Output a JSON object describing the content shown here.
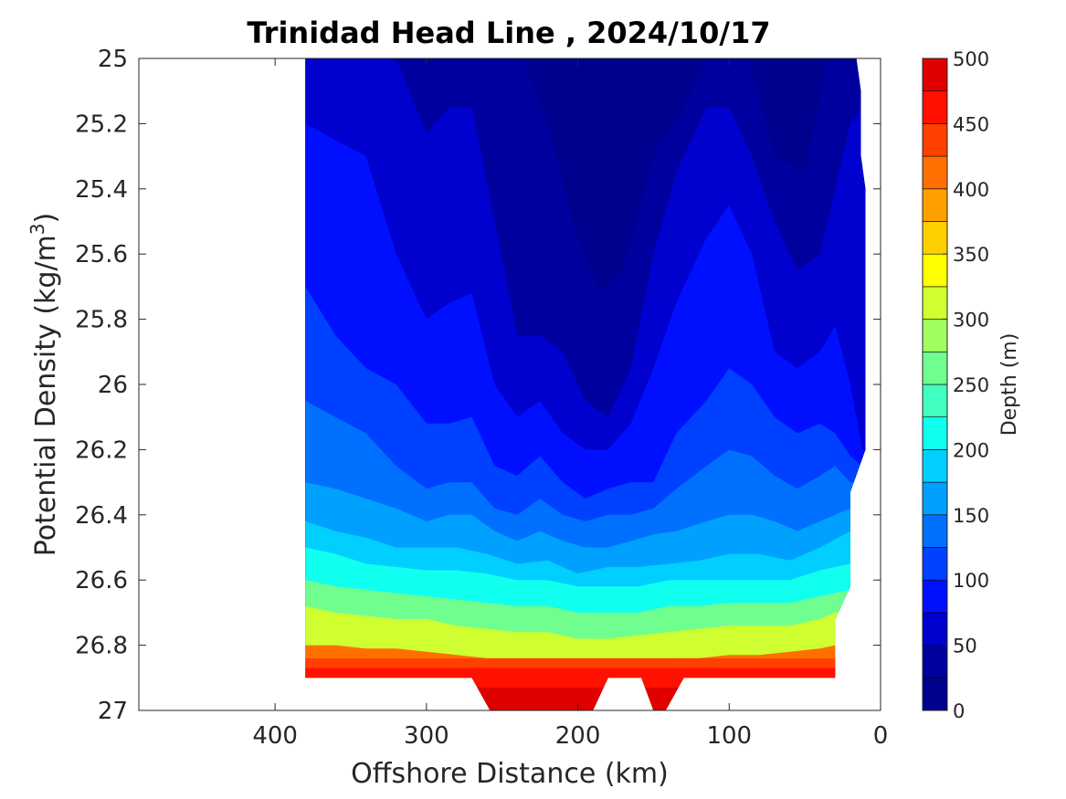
{
  "chart_data": {
    "type": "contourf",
    "title": "Trinidad Head Line , 2024/10/17",
    "xlabel": "Offshore Distance (km)",
    "ylabel_main": "Potential Density (kg/m",
    "ylabel_sup": "3",
    "ylabel_close": ")",
    "xlim": [
      490,
      0
    ],
    "ylim": [
      27,
      25
    ],
    "x_ticks": [
      400,
      300,
      200,
      100,
      0
    ],
    "y_ticks": [
      25,
      25.2,
      25.4,
      25.6,
      25.8,
      26,
      26.2,
      26.4,
      26.6,
      26.8,
      27
    ],
    "y_tick_labels": [
      "25",
      "25.2",
      "25.4",
      "25.6",
      "25.8",
      "26",
      "26.2",
      "26.4",
      "26.6",
      "26.8",
      "27"
    ],
    "grid": false,
    "colorbar": {
      "label": "Depth (m)",
      "min": 0,
      "max": 500,
      "step": 25,
      "ticks": [
        0,
        50,
        100,
        150,
        200,
        250,
        300,
        350,
        400,
        450,
        500
      ],
      "colors": [
        "#00008f",
        "#00009f",
        "#0000cf",
        "#0010ff",
        "#0040ff",
        "#0070ff",
        "#00a0ff",
        "#00cfff",
        "#10ffef",
        "#40ffbf",
        "#70ff8f",
        "#a0ff60",
        "#cfff30",
        "#ffff00",
        "#ffd000",
        "#ffa000",
        "#ff7000",
        "#ff4000",
        "#ff1000",
        "#df0000"
      ]
    },
    "contour_levels_depth": [
      25,
      50,
      75,
      100,
      125,
      150,
      175,
      200,
      225,
      250,
      275,
      300,
      325,
      350,
      375,
      400,
      425,
      450,
      475
    ],
    "data_extent": {
      "x_outer": 380,
      "x_inner_top": 10,
      "x_inner_bottom": 30,
      "sigma_bottom": 26.9,
      "deep_patches_sigma_bottom": 27.0
    },
    "isopycnal_depth_contours": [
      {
        "depth_m": 25,
        "x": [
          380,
          360,
          330,
          300,
          280,
          255,
          240,
          220,
          200,
          185,
          170,
          150,
          130,
          110,
          90,
          70,
          50,
          35,
          20,
          10
        ],
        "sigma": [
          24.9,
          24.9,
          24.9,
          24.95,
          24.95,
          24.95,
          24.95,
          25.2,
          25.55,
          25.72,
          25.65,
          25.3,
          25.15,
          24.95,
          24.95,
          25.3,
          25.35,
          25.0,
          24.95,
          24.95
        ]
      },
      {
        "depth_m": 50,
        "x": [
          380,
          360,
          340,
          320,
          300,
          285,
          270,
          255,
          240,
          225,
          210,
          195,
          180,
          165,
          150,
          135,
          115,
          100,
          85,
          70,
          55,
          40,
          30,
          20,
          12
        ],
        "sigma": [
          24.95,
          24.95,
          24.95,
          25.0,
          25.23,
          25.15,
          25.15,
          25.5,
          25.85,
          25.85,
          25.9,
          26.05,
          26.1,
          25.95,
          25.6,
          25.35,
          25.15,
          25.15,
          25.3,
          25.5,
          25.65,
          25.6,
          25.4,
          25.2,
          25.15
        ]
      },
      {
        "depth_m": 75,
        "x": [
          380,
          360,
          340,
          320,
          300,
          285,
          270,
          255,
          240,
          225,
          210,
          195,
          180,
          165,
          150,
          135,
          115,
          100,
          85,
          70,
          55,
          40,
          30,
          20,
          12
        ],
        "sigma": [
          25.2,
          25.25,
          25.3,
          25.6,
          25.8,
          25.75,
          25.72,
          26.0,
          26.1,
          26.05,
          26.15,
          26.2,
          26.2,
          26.12,
          25.95,
          25.75,
          25.55,
          25.45,
          25.6,
          25.9,
          25.95,
          25.9,
          25.82,
          26.0,
          26.2
        ]
      },
      {
        "depth_m": 100,
        "x": [
          380,
          360,
          340,
          320,
          300,
          285,
          270,
          255,
          240,
          225,
          210,
          195,
          180,
          165,
          150,
          135,
          115,
          100,
          85,
          70,
          55,
          40,
          30,
          20,
          12
        ],
        "sigma": [
          25.7,
          25.85,
          25.95,
          26.0,
          26.12,
          26.12,
          26.1,
          26.25,
          26.28,
          26.22,
          26.3,
          26.35,
          26.32,
          26.3,
          26.3,
          26.15,
          26.05,
          25.95,
          26.0,
          26.1,
          26.15,
          26.12,
          26.15,
          26.22,
          26.25
        ]
      },
      {
        "depth_m": 125,
        "x": [
          380,
          360,
          340,
          320,
          300,
          285,
          270,
          255,
          240,
          225,
          210,
          195,
          180,
          165,
          150,
          135,
          115,
          100,
          85,
          70,
          55,
          40,
          30,
          20
        ],
        "sigma": [
          26.05,
          26.1,
          26.15,
          26.25,
          26.32,
          26.3,
          26.3,
          26.38,
          26.4,
          26.35,
          26.4,
          26.42,
          26.4,
          26.4,
          26.38,
          26.32,
          26.25,
          26.2,
          26.22,
          26.28,
          26.32,
          26.28,
          26.25,
          26.3
        ]
      },
      {
        "depth_m": 150,
        "x": [
          380,
          360,
          340,
          320,
          300,
          285,
          270,
          255,
          240,
          225,
          210,
          195,
          180,
          165,
          150,
          135,
          115,
          100,
          85,
          70,
          55,
          40,
          30,
          20
        ],
        "sigma": [
          26.3,
          26.32,
          26.35,
          26.38,
          26.42,
          26.4,
          26.4,
          26.45,
          26.48,
          26.45,
          26.48,
          26.5,
          26.5,
          26.48,
          26.46,
          26.45,
          26.42,
          26.4,
          26.4,
          26.42,
          26.45,
          26.42,
          26.4,
          26.38
        ]
      },
      {
        "depth_m": 175,
        "x": [
          380,
          360,
          340,
          320,
          300,
          280,
          260,
          240,
          220,
          200,
          180,
          160,
          140,
          120,
          100,
          80,
          60,
          40,
          20
        ],
        "sigma": [
          26.42,
          26.45,
          26.47,
          26.5,
          26.5,
          26.5,
          26.52,
          26.55,
          26.54,
          26.58,
          26.56,
          26.56,
          26.55,
          26.54,
          26.52,
          26.52,
          26.54,
          26.5,
          26.45
        ]
      },
      {
        "depth_m": 200,
        "x": [
          380,
          360,
          340,
          320,
          300,
          280,
          260,
          240,
          220,
          200,
          180,
          160,
          140,
          120,
          100,
          80,
          60,
          40,
          20
        ],
        "sigma": [
          26.5,
          26.52,
          26.55,
          26.56,
          26.57,
          26.57,
          26.58,
          26.6,
          26.6,
          26.62,
          26.62,
          26.62,
          26.6,
          26.6,
          26.6,
          26.6,
          26.6,
          26.57,
          26.55
        ]
      },
      {
        "depth_m": 250,
        "x": [
          380,
          360,
          340,
          320,
          300,
          280,
          260,
          240,
          220,
          200,
          180,
          160,
          140,
          120,
          100,
          80,
          60,
          40,
          20
        ],
        "sigma": [
          26.6,
          26.62,
          26.63,
          26.64,
          26.65,
          26.66,
          26.67,
          26.68,
          26.68,
          26.7,
          26.7,
          26.7,
          26.68,
          26.68,
          26.67,
          26.67,
          26.67,
          26.65,
          26.63
        ]
      },
      {
        "depth_m": 300,
        "x": [
          380,
          360,
          340,
          320,
          300,
          280,
          260,
          240,
          220,
          200,
          180,
          160,
          140,
          120,
          100,
          80,
          60,
          40,
          30
        ],
        "sigma": [
          26.68,
          26.7,
          26.71,
          26.72,
          26.72,
          26.74,
          26.75,
          26.76,
          26.76,
          26.78,
          26.78,
          26.77,
          26.76,
          26.75,
          26.74,
          26.74,
          26.74,
          26.72,
          26.7
        ]
      },
      {
        "depth_m": 400,
        "x": [
          380,
          360,
          340,
          320,
          300,
          280,
          260,
          240,
          220,
          200,
          180,
          160,
          140,
          120,
          100,
          80,
          60,
          40,
          30
        ],
        "sigma": [
          26.8,
          26.8,
          26.81,
          26.81,
          26.82,
          26.83,
          26.84,
          26.85,
          26.85,
          26.86,
          26.86,
          26.85,
          26.84,
          26.84,
          26.83,
          26.83,
          26.82,
          26.81,
          26.8
        ]
      }
    ]
  }
}
